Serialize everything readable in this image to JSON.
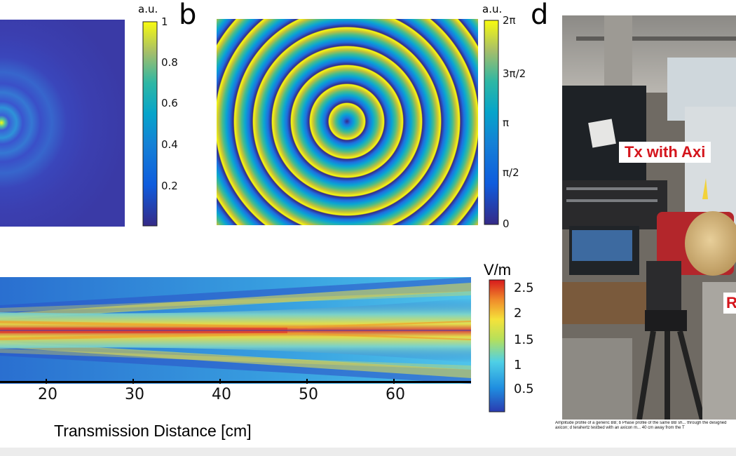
{
  "panel_b": {
    "letter": "b",
    "unit": "a.u.",
    "ticks": [
      "1",
      "0.8",
      "0.6",
      "0.4",
      "0.2"
    ]
  },
  "panel_d": {
    "letter": "d",
    "unit": "a.u.",
    "ticks": [
      "2π",
      "3π/2",
      "π",
      "π/2",
      "0"
    ]
  },
  "panel_field": {
    "unit": "V/m",
    "colorbar_ticks": [
      "2.5",
      "2",
      "1.5",
      "1",
      "0.5"
    ],
    "xticks": [
      "20",
      "30",
      "40",
      "50",
      "60"
    ],
    "xlabel": "Transmission Distance [cm]"
  },
  "photo": {
    "callout_tx": "Tx with Axi",
    "callout_rx": "R",
    "caption": "Amplitude profile of a generic BB; b Phase profile of the same BB sh... through the designed axicon; d terahertz testbed with an axicon m... 40 cm away from the T"
  },
  "colors": {
    "parula_low": "#352a87",
    "parula_high": "#f9fb0e",
    "jet_high": "#d7191c",
    "callout": "#d4151c"
  }
}
